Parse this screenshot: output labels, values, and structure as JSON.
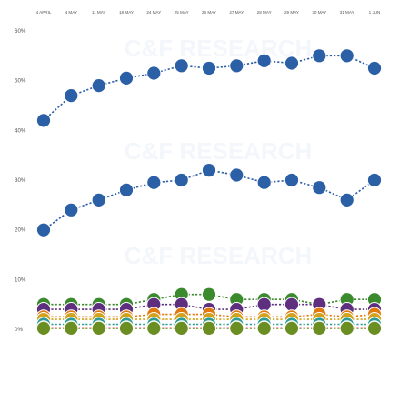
{
  "chart_data": {
    "type": "line",
    "title": "",
    "xlabel": "",
    "ylabel": "",
    "categories": [
      "4 APRIL",
      "4 MAY",
      "11 MAY",
      "18 MAY",
      "24 MAY",
      "25 MAY",
      "26 MAY",
      "27 MAY",
      "28 MAY",
      "29 MAY",
      "30 MAY",
      "31 MAY",
      "1 JUN"
    ],
    "y_ticks": [
      "60%",
      "50%",
      "40%",
      "30%",
      "20%",
      "10%",
      "0%"
    ],
    "ylim": [
      0,
      60
    ],
    "grid": false,
    "legend": "none",
    "series": [
      {
        "color": "#2b5fa6",
        "values": [
          42,
          47,
          49,
          50.5,
          51.5,
          53,
          52.5,
          53,
          54,
          53.5,
          55,
          55,
          52.5
        ]
      },
      {
        "color": "#2b5fa6",
        "values": [
          20,
          24,
          26,
          28,
          29.5,
          30,
          32,
          31,
          29.5,
          30,
          28.5,
          26,
          30
        ]
      },
      {
        "color": "#3b8b2e",
        "values": [
          5,
          5,
          5,
          5,
          6,
          7,
          7,
          6,
          6,
          6,
          5,
          6,
          6
        ]
      },
      {
        "color": "#5d2f7e",
        "values": [
          4,
          4,
          4,
          4,
          5,
          5,
          4,
          4,
          5,
          5,
          5,
          4,
          4
        ]
      },
      {
        "color": "#e07a10",
        "values": [
          2.5,
          2.5,
          2.5,
          2.5,
          3,
          3,
          3,
          2.5,
          2.5,
          2.5,
          3,
          2.5,
          3
        ]
      },
      {
        "color": "#d2a21c",
        "values": [
          2,
          2,
          2,
          2,
          2,
          2,
          2,
          2,
          2,
          2,
          2,
          2,
          2
        ]
      },
      {
        "color": "#2e9c95",
        "values": [
          1,
          1,
          1,
          1,
          1,
          1,
          1,
          1,
          1,
          1,
          1,
          1,
          1
        ]
      },
      {
        "color": "#e8302e",
        "values": [
          0.3,
          0.3,
          0.3,
          0.3,
          0.3,
          0.3,
          0.3,
          0.3,
          0.3,
          0.3,
          0.3,
          0.3,
          0.3
        ]
      },
      {
        "color": "#6b8e23",
        "values": [
          0.2,
          0.2,
          0.2,
          0.2,
          0.2,
          0.2,
          0.2,
          0.2,
          0.2,
          0.2,
          0.2,
          0.2,
          0.2
        ]
      }
    ]
  },
  "watermark": {
    "text": "C&F RESEARCH"
  }
}
